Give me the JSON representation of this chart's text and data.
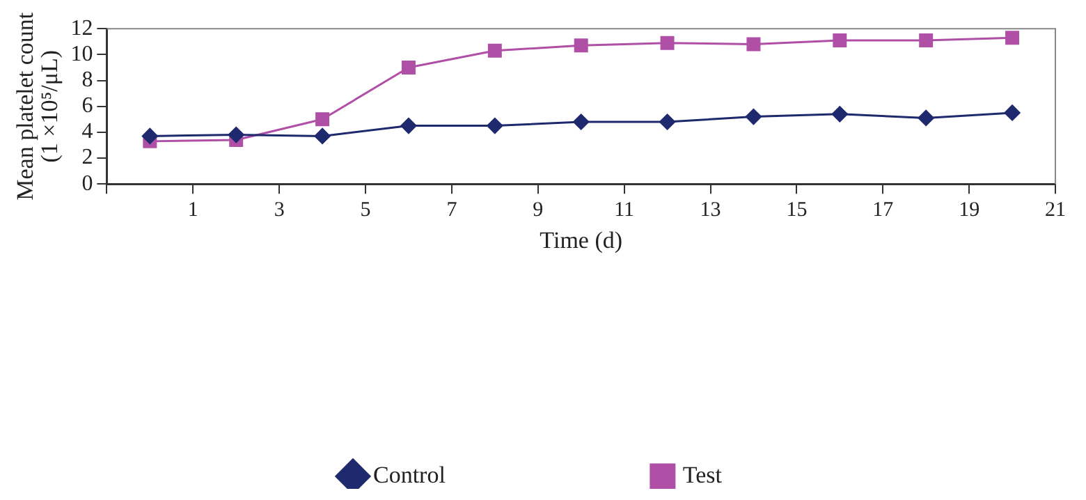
{
  "chart_data": {
    "type": "line",
    "xlabel": "Time (d)",
    "ylabel": "Mean platelet count\n(1 ×10⁵/μL)",
    "x": [
      0,
      2,
      4,
      6,
      8,
      10,
      12,
      14,
      16,
      18,
      20
    ],
    "xlim": [
      -1,
      21
    ],
    "xticks": [
      {
        "value": -1,
        "label": null
      },
      1,
      3,
      5,
      7,
      9,
      11,
      13,
      15,
      17,
      19,
      21
    ],
    "ylim": [
      0,
      12
    ],
    "yticks": [
      0,
      2,
      4,
      6,
      8,
      10,
      12
    ],
    "grid": false,
    "legend": "bottom",
    "line_style": "solid",
    "series": [
      {
        "name": "Control",
        "color": "#1f2a6e",
        "marker": "diamond",
        "values": [
          3.7,
          3.8,
          3.7,
          4.5,
          4.5,
          4.8,
          4.8,
          5.2,
          5.4,
          5.1,
          5.5
        ]
      },
      {
        "name": "Test",
        "color": "#b04fa6",
        "marker": "square",
        "values": [
          3.3,
          3.4,
          5.0,
          9.0,
          10.3,
          10.7,
          10.9,
          10.8,
          11.1,
          11.1,
          11.3
        ]
      }
    ]
  }
}
